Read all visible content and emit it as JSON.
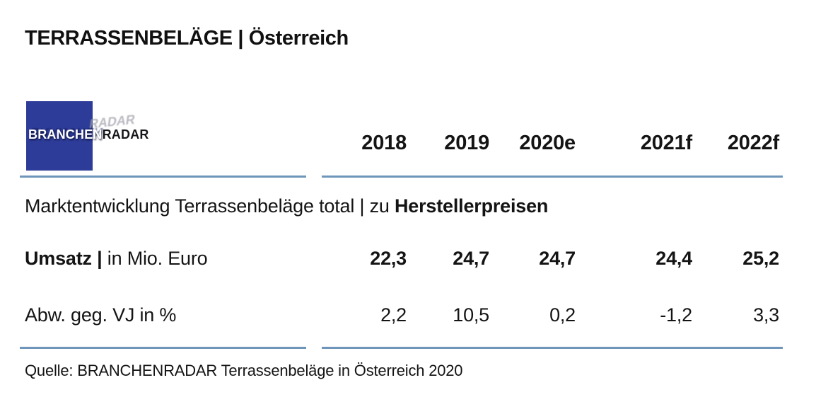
{
  "page": {
    "title": "TERRASSENBELÄGE | Österreich",
    "source_line": "Quelle: BRANCHENRADAR Terrassenbeläge in Österreich 2020"
  },
  "logo": {
    "primary": "BRANCHEN",
    "secondary": "RADAR",
    "square_color": "#2e3c99"
  },
  "colors": {
    "rule_blue": "#6e96bb",
    "logo_blue": "#2e3c99",
    "text": "#141414"
  },
  "section": {
    "prefix": "Marktentwicklung Terrassenbeläge total | zu ",
    "bold": "Herstellerpreisen"
  },
  "chart_data": {
    "type": "table",
    "title": "TERRASSENBELÄGE | Österreich",
    "section_header": "Marktentwicklung Terrassenbeläge total | zu Herstellerpreisen",
    "columns": [
      "2018",
      "2019",
      "2020e",
      "2021f",
      "2022f"
    ],
    "rows": [
      {
        "label": "Umsatz | in Mio. Euro",
        "label_bold": "Umsatz |",
        "label_regular": " in Mio. Euro",
        "unit": "Mio. Euro",
        "emphasis": "bold",
        "values": [
          "22,3",
          "24,7",
          "24,7",
          "24,4",
          "25,2"
        ],
        "values_numeric": [
          22.3,
          24.7,
          24.7,
          24.4,
          25.2
        ]
      },
      {
        "label": "Abw. geg. VJ in %",
        "unit": "%",
        "emphasis": "regular",
        "values": [
          "2,2",
          "10,5",
          "0,2",
          "-1,2",
          "3,3"
        ],
        "values_numeric": [
          2.2,
          10.5,
          0.2,
          -1.2,
          3.3
        ]
      }
    ],
    "source": "Quelle: BRANCHENRADAR Terrassenbeläge in Österreich 2020"
  }
}
